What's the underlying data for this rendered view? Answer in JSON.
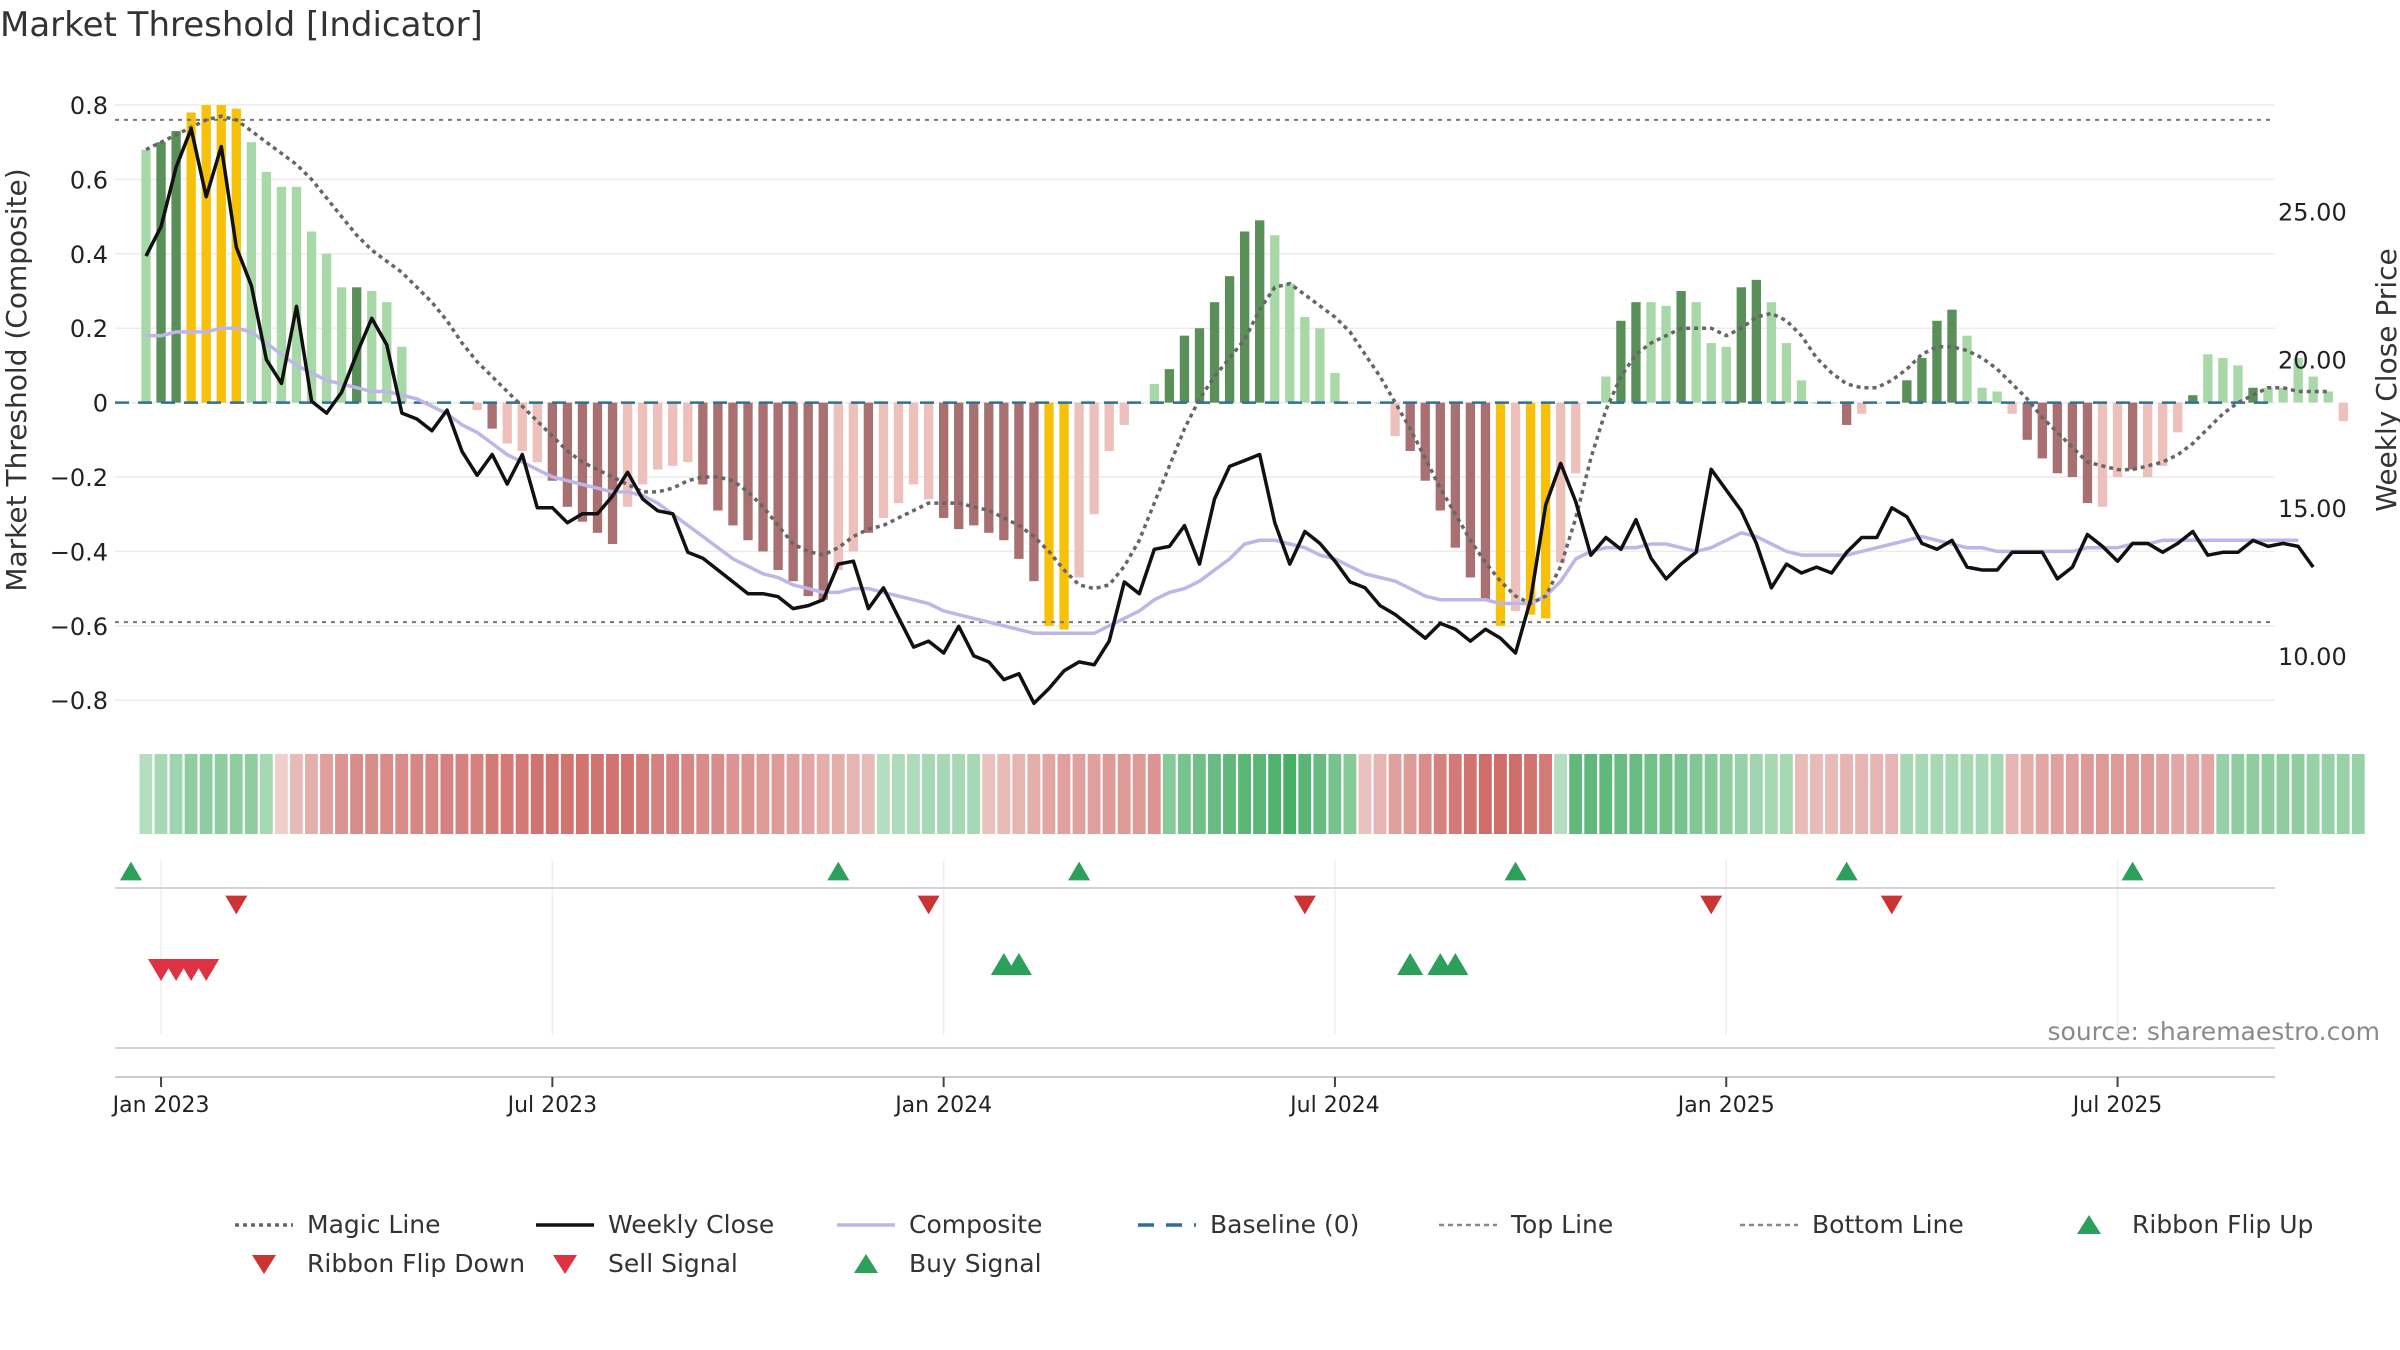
{
  "chart_data": {
    "type": "bar",
    "title": "Market Threshold [Indicator]",
    "ylabel": "Market Threshold (Composite)",
    "y2label": "Weekly Close Price",
    "source": "source: sharemaestro.com",
    "ylim": [
      -0.88,
      0.8
    ],
    "y2lim": [
      7.5,
      28.6
    ],
    "yticks": [
      0.8,
      0.6,
      0.4,
      0.2,
      0,
      -0.2,
      -0.4,
      -0.6,
      -0.8
    ],
    "ytick_labels": [
      "0.8",
      "0.6",
      "0.4",
      "0.2",
      "0",
      "−0.2",
      "−0.4",
      "−0.6",
      "−0.8"
    ],
    "y2ticks": [
      25,
      20,
      15,
      10
    ],
    "y2tick_labels": [
      "25.00",
      "20.00",
      "15.00",
      "10.00"
    ],
    "xticks": [
      {
        "label": "Jan 2023",
        "week": 1
      },
      {
        "label": "Jul 2023",
        "week": 27
      },
      {
        "label": "Jan 2024",
        "week": 53
      },
      {
        "label": "Jul 2024",
        "week": 79
      },
      {
        "label": "Jan 2025",
        "week": 105
      },
      {
        "label": "Jul 2025",
        "week": 131
      }
    ],
    "week_range": [
      -1,
      142
    ],
    "top_line": 0.76,
    "bottom_line": -0.59,
    "baseline": 0,
    "legend": [
      {
        "label": "Magic Line",
        "kind": "dotted",
        "color": "#666666"
      },
      {
        "label": "Weekly Close",
        "kind": "solid",
        "color": "#111111"
      },
      {
        "label": "Composite",
        "kind": "solid",
        "color": "#bdb6e6"
      },
      {
        "label": "Baseline (0)",
        "kind": "dashed",
        "color": "#2e6f95"
      },
      {
        "label": "Top Line",
        "kind": "dashed-fine",
        "color": "#888888"
      },
      {
        "label": "Bottom Line",
        "kind": "dashed-fine",
        "color": "#888888"
      },
      {
        "label": "Ribbon Flip Up",
        "kind": "tri-up",
        "color": "#2ca05a"
      },
      {
        "label": "Ribbon Flip Down",
        "kind": "tri-down",
        "color": "#cc3333"
      },
      {
        "label": "Sell Signal",
        "kind": "tri-down",
        "color": "#dd3344"
      },
      {
        "label": "Buy Signal",
        "kind": "tri-up",
        "color": "#2ca05a"
      }
    ],
    "colors": {
      "strong_up": "#5a8f5a",
      "weak_up": "#a8d8a8",
      "strong_down": "#a87070",
      "weak_down": "#eec0bb",
      "extreme": "#f7c10a",
      "ribbon_green": "#3aa85a",
      "ribbon_red": "#c85a55"
    },
    "series": [
      {
        "name": "Composite Bars",
        "values": [
          0.68,
          0.7,
          0.73,
          0.78,
          0.8,
          0.8,
          0.79,
          0.7,
          0.62,
          0.58,
          0.58,
          0.46,
          0.4,
          0.31,
          0.31,
          0.3,
          0.27,
          0.15,
          0,
          0,
          0,
          0,
          -0.02,
          -0.07,
          -0.11,
          -0.13,
          -0.16,
          -0.21,
          -0.28,
          -0.32,
          -0.35,
          -0.38,
          -0.28,
          -0.22,
          -0.18,
          -0.17,
          -0.16,
          -0.22,
          -0.29,
          -0.33,
          -0.37,
          -0.4,
          -0.45,
          -0.48,
          -0.52,
          -0.53,
          -0.45,
          -0.4,
          -0.35,
          -0.31,
          -0.27,
          -0.22,
          -0.26,
          -0.31,
          -0.34,
          -0.33,
          -0.35,
          -0.37,
          -0.42,
          -0.48,
          -0.6,
          -0.61,
          -0.47,
          -0.3,
          -0.13,
          -0.06,
          0,
          0.05,
          0.09,
          0.18,
          0.2,
          0.27,
          0.34,
          0.46,
          0.49,
          0.45,
          0.32,
          0.23,
          0.2,
          0.08,
          0,
          0,
          0,
          -0.09,
          -0.13,
          -0.21,
          -0.29,
          -0.39,
          -0.47,
          -0.53,
          -0.6,
          -0.56,
          -0.57,
          -0.58,
          -0.43,
          -0.19,
          0,
          0.07,
          0.22,
          0.27,
          0.27,
          0.26,
          0.3,
          0.27,
          0.16,
          0.15,
          0.31,
          0.33,
          0.27,
          0.16,
          0.06,
          0,
          0,
          -0.06,
          -0.03,
          0,
          0,
          0.06,
          0.12,
          0.22,
          0.25,
          0.18,
          0.04,
          0.03,
          -0.03,
          -0.1,
          -0.15,
          -0.19,
          -0.2,
          -0.27,
          -0.28,
          -0.2,
          -0.18,
          -0.2,
          -0.17,
          -0.08,
          0.02,
          0.13,
          0.12,
          0.1,
          0.04,
          0.04,
          0.04,
          0.12,
          0.07,
          0.03,
          -0.05
        ]
      },
      {
        "name": "Bar Style",
        "values": [
          "w",
          "s",
          "s",
          "e",
          "e",
          "e",
          "e",
          "w",
          "w",
          "w",
          "w",
          "w",
          "w",
          "w",
          "s",
          "w",
          "w",
          "w",
          "w",
          "w",
          "w",
          "w",
          "w",
          "s",
          "w",
          "w",
          "w",
          "s",
          "s",
          "s",
          "s",
          "s",
          "w",
          "w",
          "w",
          "w",
          "w",
          "s",
          "s",
          "s",
          "s",
          "s",
          "s",
          "s",
          "s",
          "s",
          "w",
          "w",
          "s",
          "w",
          "w",
          "w",
          "w",
          "s",
          "s",
          "s",
          "s",
          "s",
          "s",
          "s",
          "e",
          "e",
          "w",
          "w",
          "w",
          "w",
          "w",
          "w",
          "s",
          "s",
          "s",
          "s",
          "s",
          "s",
          "s",
          "w",
          "w",
          "w",
          "w",
          "w",
          "w",
          "w",
          "w",
          "w",
          "s",
          "s",
          "s",
          "s",
          "s",
          "s",
          "e",
          "w",
          "e",
          "e",
          "w",
          "w",
          "w",
          "w",
          "s",
          "s",
          "w",
          "w",
          "s",
          "w",
          "w",
          "w",
          "s",
          "s",
          "w",
          "w",
          "w",
          "w",
          "w",
          "s",
          "w",
          "w",
          "w",
          "s",
          "s",
          "s",
          "s",
          "w",
          "w",
          "w",
          "w",
          "s",
          "s",
          "s",
          "s",
          "s",
          "w",
          "w",
          "s",
          "w",
          "w",
          "w",
          "s",
          "w",
          "w",
          "w",
          "s",
          "w",
          "w",
          "w"
        ]
      },
      {
        "name": "Weekly Close",
        "values": [
          23.5,
          24.5,
          26.5,
          27.8,
          25.5,
          27.2,
          23.8,
          22.5,
          20,
          19.2,
          21.8,
          18.6,
          18.2,
          18.9,
          20.2,
          21.4,
          20.5,
          18.2,
          18,
          17.6,
          18.3,
          16.9,
          16.1,
          16.8,
          15.8,
          16.8,
          15,
          15,
          14.5,
          14.8,
          14.8,
          15.4,
          16.2,
          15.3,
          14.9,
          14.8,
          13.5,
          13.3,
          12.9,
          12.5,
          12.1,
          12.1,
          12,
          11.6,
          11.7,
          11.9,
          13.1,
          13.2,
          11.6,
          12.3,
          11.3,
          10.3,
          10.5,
          10.1,
          11,
          10,
          9.8,
          9.2,
          9.4,
          8.4,
          8.9,
          9.5,
          9.8,
          9.7,
          10.5,
          12.5,
          12.1,
          13.6,
          13.7,
          14.4,
          13.1,
          15.3,
          16.4,
          16.6,
          16.8,
          14.5,
          13.1,
          14.2,
          13.8,
          13.2,
          12.5,
          12.3,
          11.7,
          11.4,
          11,
          10.6,
          11.1,
          10.9,
          10.5,
          10.9,
          10.6,
          10.1,
          11.9,
          15.1,
          16.5,
          15.2,
          13.4,
          14,
          13.6,
          14.6,
          13.3,
          12.6,
          13.1,
          13.5,
          16.3,
          15.6,
          14.9,
          13.8,
          12.3,
          13.1,
          12.8,
          13,
          12.8,
          13.5,
          14,
          14,
          15,
          14.7,
          13.8,
          13.6,
          13.9,
          13,
          12.9,
          12.9,
          13.5,
          13.5,
          13.5,
          12.6,
          13,
          14.1,
          13.7,
          13.2,
          13.8,
          13.8,
          13.5,
          13.8,
          14.2,
          13.4,
          13.5,
          13.5,
          13.9,
          13.7,
          13.8,
          13.7,
          13
        ]
      },
      {
        "name": "Composite",
        "values": [
          0.18,
          0.18,
          0.19,
          0.19,
          0.19,
          0.2,
          0.2,
          0.19,
          0.16,
          0.13,
          0.1,
          0.08,
          0.06,
          0.05,
          0.04,
          0.03,
          0.03,
          0.02,
          0.01,
          -0.01,
          -0.03,
          -0.06,
          -0.08,
          -0.11,
          -0.14,
          -0.16,
          -0.18,
          -0.2,
          -0.21,
          -0.22,
          -0.23,
          -0.24,
          -0.24,
          -0.25,
          -0.27,
          -0.3,
          -0.33,
          -0.36,
          -0.39,
          -0.42,
          -0.44,
          -0.46,
          -0.47,
          -0.49,
          -0.5,
          -0.51,
          -0.51,
          -0.5,
          -0.5,
          -0.51,
          -0.52,
          -0.53,
          -0.54,
          -0.56,
          -0.57,
          -0.58,
          -0.59,
          -0.6,
          -0.61,
          -0.62,
          -0.62,
          -0.62,
          -0.62,
          -0.62,
          -0.6,
          -0.58,
          -0.56,
          -0.53,
          -0.51,
          -0.5,
          -0.48,
          -0.45,
          -0.42,
          -0.38,
          -0.37,
          -0.37,
          -0.38,
          -0.39,
          -0.41,
          -0.42,
          -0.44,
          -0.46,
          -0.47,
          -0.48,
          -0.5,
          -0.52,
          -0.53,
          -0.53,
          -0.53,
          -0.53,
          -0.54,
          -0.54,
          -0.54,
          -0.52,
          -0.48,
          -0.42,
          -0.4,
          -0.39,
          -0.39,
          -0.39,
          -0.38,
          -0.38,
          -0.39,
          -0.4,
          -0.39,
          -0.37,
          -0.35,
          -0.36,
          -0.38,
          -0.4,
          -0.41,
          -0.41,
          -0.41,
          -0.41,
          -0.4,
          -0.39,
          -0.38,
          -0.37,
          -0.36,
          -0.37,
          -0.38,
          -0.39,
          -0.39,
          -0.4,
          -0.4,
          -0.4,
          -0.4,
          -0.4,
          -0.4,
          -0.39,
          -0.39,
          -0.39,
          -0.38,
          -0.38,
          -0.37,
          -0.37,
          -0.37,
          -0.37,
          -0.37,
          -0.37,
          -0.37,
          -0.37,
          -0.37,
          -0.37
        ]
      },
      {
        "name": "Magic Line",
        "values": [
          0.68,
          0.7,
          0.72,
          0.74,
          0.76,
          0.77,
          0.76,
          0.73,
          0.7,
          0.67,
          0.64,
          0.6,
          0.55,
          0.5,
          0.45,
          0.41,
          0.38,
          0.35,
          0.31,
          0.27,
          0.22,
          0.16,
          0.11,
          0.07,
          0.03,
          -0.01,
          -0.05,
          -0.09,
          -0.13,
          -0.16,
          -0.18,
          -0.2,
          -0.22,
          -0.24,
          -0.24,
          -0.23,
          -0.21,
          -0.2,
          -0.2,
          -0.21,
          -0.24,
          -0.28,
          -0.33,
          -0.38,
          -0.4,
          -0.41,
          -0.39,
          -0.36,
          -0.34,
          -0.33,
          -0.31,
          -0.29,
          -0.27,
          -0.27,
          -0.27,
          -0.28,
          -0.29,
          -0.31,
          -0.33,
          -0.36,
          -0.4,
          -0.45,
          -0.49,
          -0.5,
          -0.49,
          -0.44,
          -0.37,
          -0.27,
          -0.17,
          -0.07,
          0.01,
          0.07,
          0.12,
          0.17,
          0.25,
          0.31,
          0.32,
          0.29,
          0.26,
          0.23,
          0.19,
          0.13,
          0.07,
          0,
          -0.07,
          -0.15,
          -0.23,
          -0.3,
          -0.37,
          -0.43,
          -0.48,
          -0.52,
          -0.54,
          -0.52,
          -0.44,
          -0.31,
          -0.15,
          -0.02,
          0.07,
          0.13,
          0.16,
          0.18,
          0.2,
          0.2,
          0.2,
          0.18,
          0.2,
          0.23,
          0.24,
          0.22,
          0.18,
          0.12,
          0.08,
          0.05,
          0.04,
          0.04,
          0.06,
          0.09,
          0.13,
          0.15,
          0.15,
          0.14,
          0.12,
          0.09,
          0.05,
          0.01,
          -0.04,
          -0.08,
          -0.12,
          -0.16,
          -0.17,
          -0.18,
          -0.18,
          -0.17,
          -0.16,
          -0.14,
          -0.11,
          -0.07,
          -0.03,
          0,
          0.02,
          0.04,
          0.04,
          0.03,
          0.03,
          0.03
        ]
      },
      {
        "name": "Ribbon",
        "values": [
          0.2,
          0.3,
          0.35,
          0.45,
          0.45,
          0.45,
          0.45,
          0.45,
          0.3,
          -0.1,
          -0.25,
          -0.35,
          -0.45,
          -0.55,
          -0.6,
          -0.6,
          -0.62,
          -0.62,
          -0.65,
          -0.65,
          -0.7,
          -0.7,
          -0.7,
          -0.75,
          -0.75,
          -0.75,
          -0.8,
          -0.8,
          -0.8,
          -0.8,
          -0.8,
          -0.8,
          -0.8,
          -0.75,
          -0.7,
          -0.7,
          -0.65,
          -0.6,
          -0.6,
          -0.55,
          -0.55,
          -0.5,
          -0.5,
          -0.45,
          -0.4,
          -0.35,
          -0.35,
          -0.3,
          -0.25,
          0.2,
          0.25,
          0.25,
          0.3,
          0.3,
          0.3,
          0.3,
          -0.2,
          -0.25,
          -0.3,
          -0.35,
          -0.4,
          -0.45,
          -0.45,
          -0.45,
          -0.5,
          -0.5,
          -0.5,
          -0.55,
          0.5,
          0.6,
          0.65,
          0.7,
          0.75,
          0.8,
          0.8,
          0.85,
          0.9,
          0.8,
          0.7,
          0.6,
          0.5,
          -0.2,
          -0.3,
          -0.45,
          -0.5,
          -0.6,
          -0.7,
          -0.75,
          -0.8,
          -0.85,
          -0.85,
          -0.85,
          -0.8,
          -0.75,
          0.2,
          0.75,
          0.75,
          0.75,
          0.7,
          0.7,
          0.65,
          0.65,
          0.6,
          0.55,
          0.5,
          0.45,
          0.4,
          0.35,
          0.3,
          0.3,
          -0.25,
          -0.25,
          -0.25,
          -0.3,
          -0.3,
          -0.3,
          -0.3,
          0.3,
          0.3,
          0.3,
          0.3,
          0.3,
          0.3,
          0.3,
          -0.3,
          -0.35,
          -0.4,
          -0.45,
          -0.45,
          -0.5,
          -0.5,
          -0.5,
          -0.5,
          -0.5,
          -0.45,
          -0.4,
          -0.4,
          -0.4,
          0.4,
          0.45,
          0.45,
          0.45,
          0.45,
          0.45,
          0.4,
          0.4,
          0.4,
          0.4
        ]
      }
    ],
    "signals": {
      "ribbon_flip_up": [
        -1,
        46,
        62,
        91,
        113,
        132
      ],
      "ribbon_flip_down": [
        6,
        52,
        77,
        104,
        116
      ],
      "buy_signal": [
        57,
        58,
        84,
        86,
        87
      ],
      "sell_signal": [
        1,
        2,
        3,
        4
      ]
    }
  }
}
